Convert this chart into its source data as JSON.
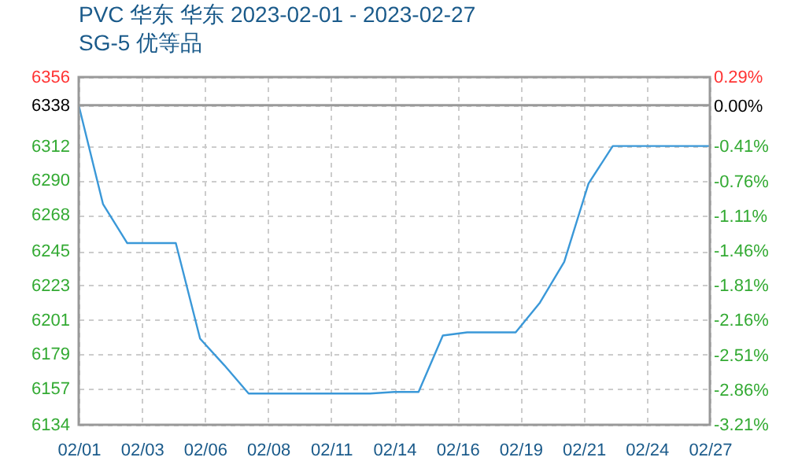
{
  "chart_data": {
    "type": "line",
    "title": "PVC 华东 华东 2023-02-01 - 2023-02-27",
    "subtitle": "SG-5 优等品",
    "x": [
      "2023-02-01",
      "2023-02-02",
      "2023-02-03",
      "2023-02-04",
      "2023-02-05",
      "2023-02-06",
      "2023-02-07",
      "2023-02-08",
      "2023-02-09",
      "2023-02-10",
      "2023-02-11",
      "2023-02-12",
      "2023-02-13",
      "2023-02-14",
      "2023-02-15",
      "2023-02-16",
      "2023-02-17",
      "2023-02-18",
      "2023-02-19",
      "2023-02-20",
      "2023-02-21",
      "2023-02-22",
      "2023-02-23",
      "2023-02-24",
      "2023-02-25",
      "2023-02-26",
      "2023-02-27"
    ],
    "series": [
      {
        "color": "#3a98d8",
        "values": [
          6338,
          6275,
          6250,
          6250,
          6250,
          6189,
          6172,
          6154,
          6154,
          6154,
          6154,
          6154,
          6154,
          6155,
          6155,
          6191,
          6193,
          6193,
          6193,
          6212,
          6238,
          6288,
          6312,
          6312,
          6312,
          6312,
          6312
        ]
      }
    ],
    "xlim": [
      "2023-02-01",
      "2023-02-27"
    ],
    "xticks": [
      {
        "value": "2023-02-01",
        "label": "02/01"
      },
      {
        "value": "2023-02-03T14:24",
        "label": "02/03"
      },
      {
        "value": "2023-02-06T04:48",
        "label": "02/06"
      },
      {
        "value": "2023-02-08T19:12",
        "label": "02/08"
      },
      {
        "value": "2023-02-11T09:36",
        "label": "02/11"
      },
      {
        "value": "2023-02-14",
        "label": "02/14"
      },
      {
        "value": "2023-02-16T14:24",
        "label": "02/16"
      },
      {
        "value": "2023-02-19T04:48",
        "label": "02/19"
      },
      {
        "value": "2023-02-21T19:12",
        "label": "02/21"
      },
      {
        "value": "2023-02-24T09:36",
        "label": "02/24"
      },
      {
        "value": "2023-02-27",
        "label": "02/27"
      }
    ],
    "ylim": [
      6134,
      6356
    ],
    "yticks": [
      6134,
      6157,
      6179,
      6201,
      6223,
      6245,
      6268,
      6290,
      6312,
      6338,
      6356
    ],
    "y2lim": [
      -3.21,
      0.29
    ],
    "y2ticks": [
      {
        "value": -3.21,
        "label": "-3.21%"
      },
      {
        "value": -2.86,
        "label": "-2.86%"
      },
      {
        "value": -2.51,
        "label": "-2.51%"
      },
      {
        "value": -2.16,
        "label": "-2.16%"
      },
      {
        "value": -1.81,
        "label": "-1.81%"
      },
      {
        "value": -1.46,
        "label": "-1.46%"
      },
      {
        "value": -1.11,
        "label": "-1.11%"
      },
      {
        "value": -0.76,
        "label": "-0.76%"
      },
      {
        "value": -0.41,
        "label": "-0.41%"
      },
      {
        "value": 0,
        "label": "0.00%"
      },
      {
        "value": 0.29,
        "label": "0.29%"
      }
    ],
    "ref_lines": [
      {
        "axis": "y",
        "value": 6338,
        "color": "#999999"
      }
    ],
    "grid": true,
    "marker": "none",
    "line_style": "solid"
  }
}
